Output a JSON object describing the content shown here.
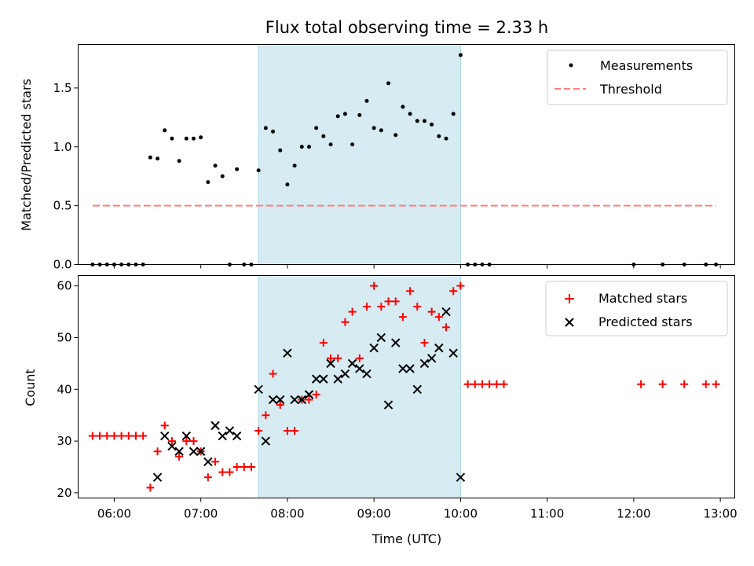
{
  "colors": {
    "shade": "#add8e6",
    "threshold": "#ff7f7f",
    "matched": "#ff0000",
    "predicted": "#000000",
    "measurement": "#000000"
  },
  "chart_data": [
    {
      "type": "scatter",
      "panel": "top",
      "title": "Flux total observing time = 2.33 h",
      "xlabel": "",
      "ylabel": "Matched/Predicted stars",
      "xlim": [
        "05:35",
        "13:10"
      ],
      "ylim": [
        0,
        1.87
      ],
      "yticks": [
        0.0,
        0.5,
        1.0,
        1.5
      ],
      "ytick_labels": [
        "0.0",
        "0.5",
        "1.0",
        "1.5"
      ],
      "xticks": [
        "06:00",
        "07:00",
        "08:00",
        "09:00",
        "10:00",
        "11:00",
        "12:00",
        "13:00"
      ],
      "shaded_interval": [
        "07:40",
        "10:00"
      ],
      "legend_position": "upper right",
      "series": [
        {
          "name": "Measurements",
          "style": "dot",
          "points": [
            [
              "05:45",
              0
            ],
            [
              "05:50",
              0
            ],
            [
              "05:55",
              0
            ],
            [
              "06:00",
              0
            ],
            [
              "06:05",
              0
            ],
            [
              "06:10",
              0
            ],
            [
              "06:15",
              0
            ],
            [
              "06:20",
              0
            ],
            [
              "06:25",
              0.91
            ],
            [
              "06:30",
              0.9
            ],
            [
              "06:35",
              1.14
            ],
            [
              "06:40",
              1.07
            ],
            [
              "06:45",
              0.88
            ],
            [
              "06:50",
              1.07
            ],
            [
              "06:55",
              1.07
            ],
            [
              "07:00",
              1.08
            ],
            [
              "07:05",
              0.7
            ],
            [
              "07:10",
              0.84
            ],
            [
              "07:15",
              0.75
            ],
            [
              "07:20",
              0
            ],
            [
              "07:25",
              0.81
            ],
            [
              "07:30",
              0
            ],
            [
              "07:35",
              0
            ],
            [
              "07:40",
              0.8
            ],
            [
              "07:45",
              1.16
            ],
            [
              "07:50",
              1.13
            ],
            [
              "07:55",
              0.97
            ],
            [
              "08:00",
              0.68
            ],
            [
              "08:05",
              0.84
            ],
            [
              "08:10",
              1.0
            ],
            [
              "08:15",
              1.0
            ],
            [
              "08:20",
              1.16
            ],
            [
              "08:25",
              1.09
            ],
            [
              "08:30",
              1.02
            ],
            [
              "08:35",
              1.26
            ],
            [
              "08:40",
              1.28
            ],
            [
              "08:45",
              1.02
            ],
            [
              "08:50",
              1.27
            ],
            [
              "08:55",
              1.39
            ],
            [
              "09:00",
              1.16
            ],
            [
              "09:05",
              1.14
            ],
            [
              "09:10",
              1.54
            ],
            [
              "09:15",
              1.1
            ],
            [
              "09:20",
              1.34
            ],
            [
              "09:25",
              1.28
            ],
            [
              "09:30",
              1.22
            ],
            [
              "09:35",
              1.22
            ],
            [
              "09:40",
              1.19
            ],
            [
              "09:45",
              1.09
            ],
            [
              "09:50",
              1.07
            ],
            [
              "09:55",
              1.28
            ],
            [
              "10:00",
              1.78
            ],
            [
              "10:05",
              0
            ],
            [
              "10:10",
              0
            ],
            [
              "10:15",
              0
            ],
            [
              "10:20",
              0
            ],
            [
              "12:00",
              0
            ],
            [
              "12:20",
              0
            ],
            [
              "12:35",
              0
            ],
            [
              "12:50",
              0
            ],
            [
              "12:57",
              0
            ]
          ]
        },
        {
          "name": "Threshold",
          "style": "dashed-line",
          "points": [
            [
              "05:45",
              0.5
            ],
            [
              "12:57",
              0.5
            ]
          ]
        }
      ]
    },
    {
      "type": "scatter",
      "panel": "bottom",
      "title": "",
      "xlabel": "Time (UTC)",
      "ylabel": "Count",
      "xlim": [
        "05:35",
        "13:10"
      ],
      "ylim": [
        19,
        62
      ],
      "yticks": [
        20,
        30,
        40,
        50,
        60
      ],
      "ytick_labels": [
        "20",
        "30",
        "40",
        "50",
        "60"
      ],
      "xticks": [
        "06:00",
        "07:00",
        "08:00",
        "09:00",
        "10:00",
        "11:00",
        "12:00",
        "13:00"
      ],
      "shaded_interval": [
        "07:40",
        "10:00"
      ],
      "legend_position": "upper right",
      "series": [
        {
          "name": "Matched stars",
          "style": "plus",
          "points": [
            [
              "05:45",
              31
            ],
            [
              "05:50",
              31
            ],
            [
              "05:55",
              31
            ],
            [
              "06:00",
              31
            ],
            [
              "06:05",
              31
            ],
            [
              "06:10",
              31
            ],
            [
              "06:15",
              31
            ],
            [
              "06:20",
              31
            ],
            [
              "06:25",
              21
            ],
            [
              "06:30",
              28
            ],
            [
              "06:35",
              33
            ],
            [
              "06:40",
              30
            ],
            [
              "06:45",
              27
            ],
            [
              "06:50",
              30
            ],
            [
              "06:55",
              30
            ],
            [
              "07:00",
              28
            ],
            [
              "07:05",
              23
            ],
            [
              "07:10",
              26
            ],
            [
              "07:15",
              24
            ],
            [
              "07:20",
              24
            ],
            [
              "07:25",
              25
            ],
            [
              "07:30",
              25
            ],
            [
              "07:35",
              25
            ],
            [
              "07:40",
              32
            ],
            [
              "07:45",
              35
            ],
            [
              "07:50",
              43
            ],
            [
              "07:55",
              37
            ],
            [
              "08:00",
              32
            ],
            [
              "08:05",
              32
            ],
            [
              "08:10",
              38
            ],
            [
              "08:15",
              38
            ],
            [
              "08:20",
              39
            ],
            [
              "08:25",
              49
            ],
            [
              "08:30",
              46
            ],
            [
              "08:35",
              46
            ],
            [
              "08:40",
              53
            ],
            [
              "08:45",
              55
            ],
            [
              "08:50",
              46
            ],
            [
              "08:55",
              56
            ],
            [
              "09:00",
              60
            ],
            [
              "09:05",
              56
            ],
            [
              "09:10",
              57
            ],
            [
              "09:15",
              57
            ],
            [
              "09:20",
              54
            ],
            [
              "09:25",
              59
            ],
            [
              "09:30",
              56
            ],
            [
              "09:35",
              49
            ],
            [
              "09:40",
              55
            ],
            [
              "09:45",
              54
            ],
            [
              "09:50",
              52
            ],
            [
              "09:55",
              59
            ],
            [
              "10:00",
              60
            ],
            [
              "10:05",
              41
            ],
            [
              "10:10",
              41
            ],
            [
              "10:15",
              41
            ],
            [
              "10:20",
              41
            ],
            [
              "10:25",
              41
            ],
            [
              "10:30",
              41
            ],
            [
              "12:05",
              41
            ],
            [
              "12:20",
              41
            ],
            [
              "12:35",
              41
            ],
            [
              "12:50",
              41
            ],
            [
              "12:57",
              41
            ]
          ]
        },
        {
          "name": "Predicted stars",
          "style": "x",
          "points": [
            [
              "06:30",
              23
            ],
            [
              "06:35",
              31
            ],
            [
              "06:40",
              29
            ],
            [
              "06:45",
              28
            ],
            [
              "06:50",
              31
            ],
            [
              "06:55",
              28
            ],
            [
              "07:00",
              28
            ],
            [
              "07:05",
              26
            ],
            [
              "07:10",
              33
            ],
            [
              "07:15",
              31
            ],
            [
              "07:20",
              32
            ],
            [
              "07:25",
              31
            ],
            [
              "07:40",
              40
            ],
            [
              "07:45",
              30
            ],
            [
              "07:50",
              38
            ],
            [
              "07:55",
              38
            ],
            [
              "08:00",
              47
            ],
            [
              "08:05",
              38
            ],
            [
              "08:10",
              38
            ],
            [
              "08:15",
              39
            ],
            [
              "08:20",
              42
            ],
            [
              "08:25",
              42
            ],
            [
              "08:30",
              45
            ],
            [
              "08:35",
              42
            ],
            [
              "08:40",
              43
            ],
            [
              "08:45",
              45
            ],
            [
              "08:50",
              44
            ],
            [
              "08:55",
              43
            ],
            [
              "09:00",
              48
            ],
            [
              "09:05",
              50
            ],
            [
              "09:10",
              37
            ],
            [
              "09:15",
              49
            ],
            [
              "09:20",
              44
            ],
            [
              "09:25",
              44
            ],
            [
              "09:30",
              40
            ],
            [
              "09:35",
              45
            ],
            [
              "09:40",
              46
            ],
            [
              "09:45",
              48
            ],
            [
              "09:50",
              55
            ],
            [
              "09:55",
              47
            ],
            [
              "10:00",
              23
            ]
          ]
        }
      ]
    }
  ]
}
